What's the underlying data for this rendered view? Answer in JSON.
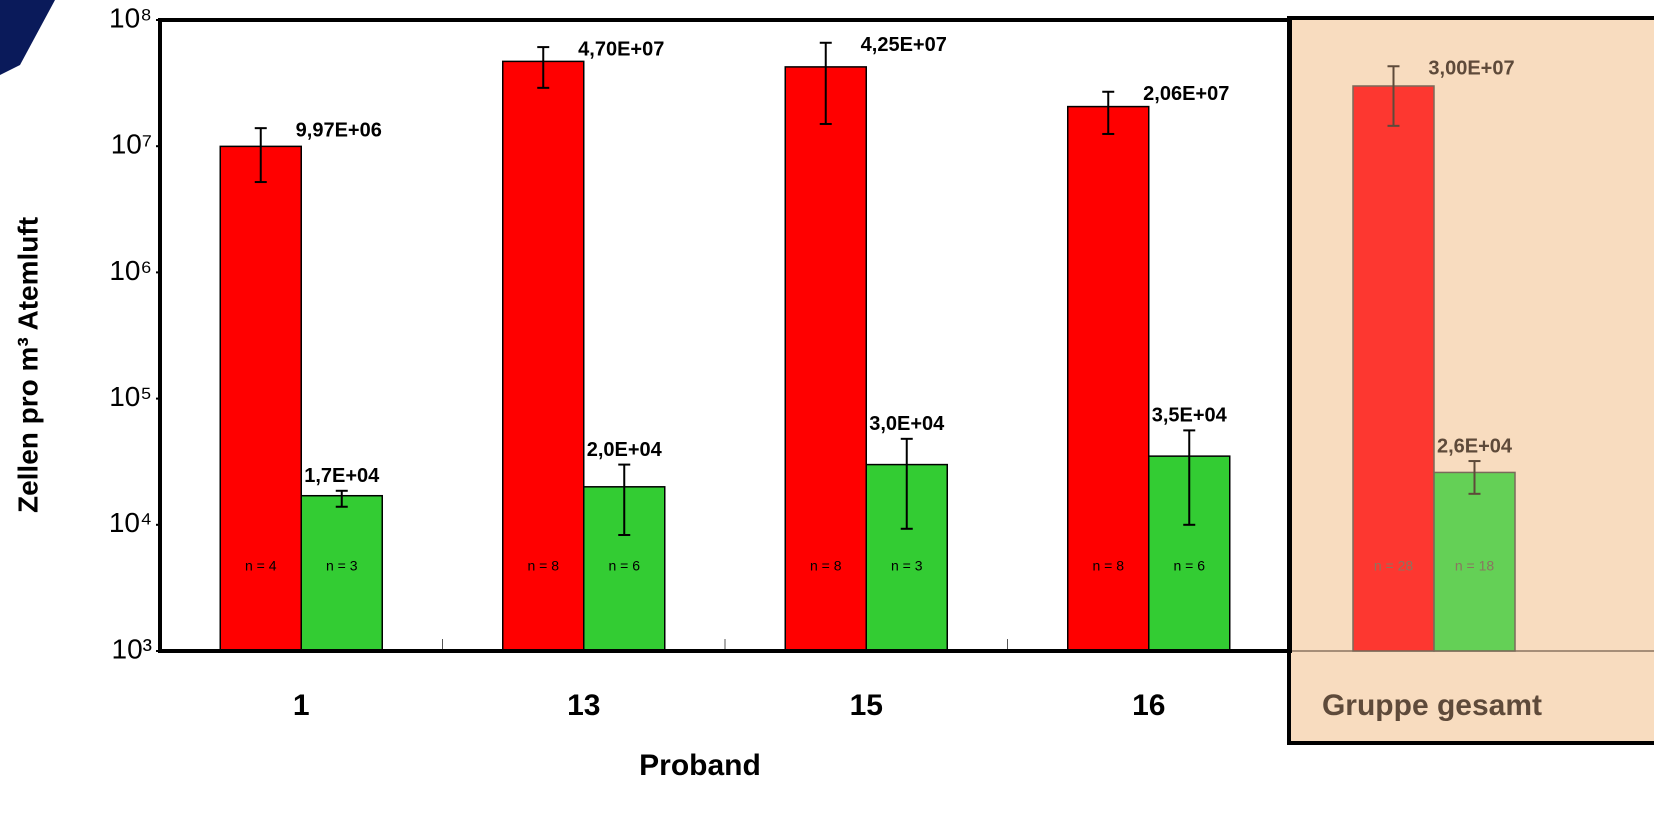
{
  "chart_data": {
    "type": "bar",
    "x_label": "Proband",
    "y_label": "Zellen pro m³ Atemluft",
    "log_scale": true,
    "ylim": [
      1000,
      100000000
    ],
    "yticks": [
      {
        "value": 1000,
        "label": "10³"
      },
      {
        "value": 10000,
        "label": "10⁴"
      },
      {
        "value": 100000,
        "label": "10⁵"
      },
      {
        "value": 1000000,
        "label": "10⁶"
      },
      {
        "value": 10000000,
        "label": "10⁷"
      },
      {
        "value": 100000000,
        "label": "10⁸"
      }
    ],
    "categories": [
      "1",
      "13",
      "15",
      "16",
      "Gruppe gesamt"
    ],
    "panel_color": "#f8dcbf",
    "series": [
      {
        "color": "#ff0000",
        "values": [
          9970000,
          47000000,
          42500000,
          20600000,
          30000000
        ],
        "value_labels": [
          "9,97E+06",
          "4,70E+07",
          "4,25E+07",
          "2,06E+07",
          "3,00E+07"
        ],
        "err_low": [
          5200000,
          29000000,
          15000000,
          12500000,
          14500000
        ],
        "err_high": [
          13900000,
          61000000,
          66000000,
          27000000,
          43000000
        ],
        "n_labels": [
          "n = 4",
          "n = 8",
          "n = 8",
          "n = 8",
          "n = 28"
        ]
      },
      {
        "color": "#33cc33",
        "values": [
          17000,
          20000,
          30000,
          35000,
          26000
        ],
        "value_labels": [
          "1,7E+04",
          "2,0E+04",
          "3,0E+04",
          "3,5E+04",
          "2,6E+04"
        ],
        "err_low": [
          13900,
          8300,
          9300,
          10000,
          17600
        ],
        "err_high": [
          18600,
          30000,
          48000,
          56000,
          32000
        ],
        "n_labels": [
          "n = 3",
          "n = 6",
          "n = 3",
          "n = 6",
          "n = 18"
        ]
      }
    ]
  }
}
